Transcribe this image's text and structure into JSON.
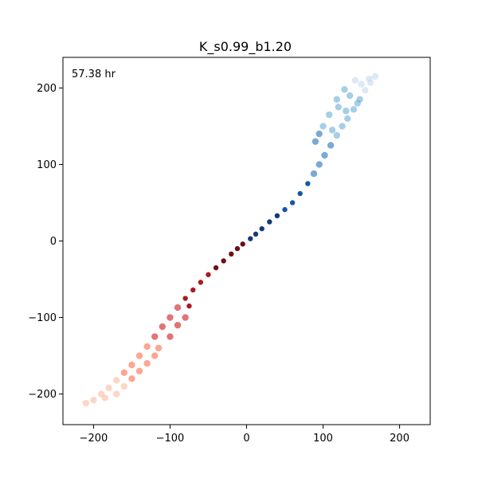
{
  "chart_data": {
    "type": "scatter",
    "title": "K_s0.99_b1.20",
    "xlabel": "",
    "ylabel": "",
    "annotation": "57.38 hr",
    "xlim": [
      -240,
      240
    ],
    "ylim": [
      -240,
      240
    ],
    "xticks": [
      -200,
      -100,
      0,
      100,
      200
    ],
    "yticks": [
      -200,
      -100,
      0,
      100,
      200
    ],
    "xtick_labels": [
      "−200",
      "−100",
      "0",
      "100",
      "200"
    ],
    "ytick_labels": [
      "−200",
      "−100",
      "0",
      "100",
      "200"
    ],
    "grid": false,
    "series": [
      {
        "colormap": "Blues",
        "colors": [
          "#08306b",
          "#08519c",
          "#2171b5",
          "#6baed6",
          "#c6dbef"
        ],
        "points": [
          [
            5,
            3
          ],
          [
            12,
            9
          ],
          [
            20,
            16
          ],
          [
            30,
            25
          ],
          [
            40,
            33
          ],
          [
            50,
            41
          ],
          [
            60,
            50
          ],
          [
            70,
            62
          ],
          [
            80,
            75
          ],
          [
            88,
            88
          ],
          [
            95,
            100
          ],
          [
            102,
            112
          ],
          [
            110,
            125
          ],
          [
            118,
            138
          ],
          [
            125,
            150
          ],
          [
            132,
            160
          ],
          [
            140,
            172
          ],
          [
            148,
            185
          ],
          [
            155,
            197
          ],
          [
            162,
            207
          ],
          [
            168,
            215
          ],
          [
            100,
            150
          ],
          [
            108,
            165
          ],
          [
            120,
            175
          ],
          [
            135,
            190
          ],
          [
            150,
            205
          ],
          [
            160,
            212
          ],
          [
            118,
            185
          ],
          [
            128,
            198
          ],
          [
            142,
            210
          ],
          [
            95,
            140
          ],
          [
            90,
            130
          ],
          [
            112,
            145
          ],
          [
            130,
            170
          ],
          [
            145,
            180
          ]
        ]
      },
      {
        "colormap": "Reds",
        "colors": [
          "#67000d",
          "#a50f15",
          "#cb181d",
          "#fb6a4a",
          "#fcbba1"
        ],
        "points": [
          [
            -5,
            -4
          ],
          [
            -12,
            -10
          ],
          [
            -20,
            -17
          ],
          [
            -30,
            -26
          ],
          [
            -40,
            -35
          ],
          [
            -50,
            -44
          ],
          [
            -60,
            -54
          ],
          [
            -70,
            -64
          ],
          [
            -80,
            -75
          ],
          [
            -90,
            -87
          ],
          [
            -100,
            -100
          ],
          [
            -110,
            -112
          ],
          [
            -120,
            -125
          ],
          [
            -130,
            -138
          ],
          [
            -140,
            -150
          ],
          [
            -150,
            -162
          ],
          [
            -160,
            -172
          ],
          [
            -170,
            -182
          ],
          [
            -180,
            -192
          ],
          [
            -190,
            -200
          ],
          [
            -200,
            -208
          ],
          [
            -210,
            -212
          ],
          [
            -90,
            -110
          ],
          [
            -100,
            -125
          ],
          [
            -115,
            -140
          ],
          [
            -130,
            -160
          ],
          [
            -150,
            -180
          ],
          [
            -170,
            -200
          ],
          [
            -80,
            -100
          ],
          [
            -75,
            -85
          ],
          [
            -120,
            -150
          ],
          [
            -140,
            -170
          ],
          [
            -160,
            -190
          ],
          [
            -185,
            -205
          ]
        ]
      }
    ]
  }
}
